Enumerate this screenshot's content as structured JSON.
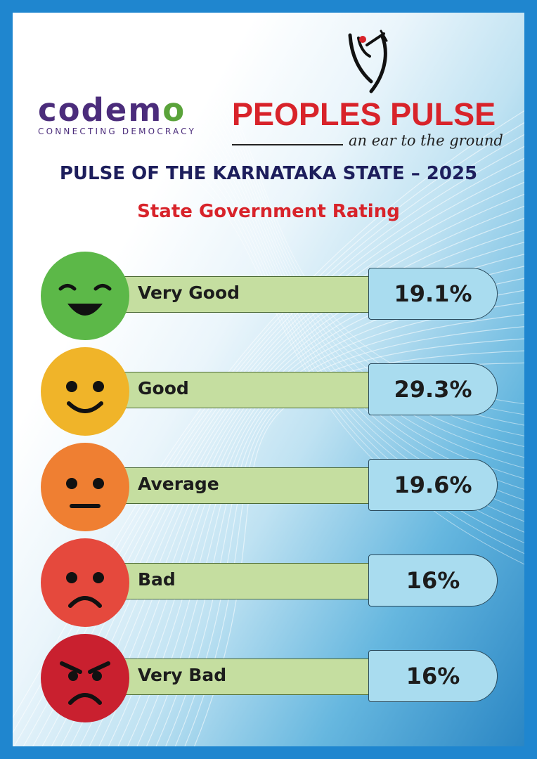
{
  "brand": {
    "codemo": "codemo",
    "codemo_tagline": "CONNECTING DEMOCRACY",
    "peoples_pulse": "PEOPLES PULSE",
    "peoples_pulse_tagline": "an ear to the ground"
  },
  "colors": {
    "frame": "#1f86cf",
    "title": "#1d1e5c",
    "accent_red": "#d8232a",
    "bar_fill": "#c5dea0",
    "value_fill": "#a9dcef"
  },
  "chart_data": {
    "type": "bar",
    "title": "PULSE OF THE KARNATAKA STATE – 2025",
    "subtitle": "State Government Rating",
    "categories": [
      "Very Good",
      "Good",
      "Average",
      "Bad",
      "Very Bad"
    ],
    "values": [
      19.1,
      29.3,
      19.6,
      16,
      16
    ],
    "value_labels": [
      "19.1%",
      "29.3%",
      "19.6%",
      "16%",
      "16%"
    ],
    "unit": "%",
    "category_icons": [
      "grinning-face-icon",
      "smiling-face-icon",
      "neutral-face-icon",
      "frowning-face-icon",
      "angry-face-icon"
    ],
    "category_colors": [
      "#5cb848",
      "#f0b429",
      "#ef7f32",
      "#e5493d",
      "#c9202f"
    ]
  }
}
